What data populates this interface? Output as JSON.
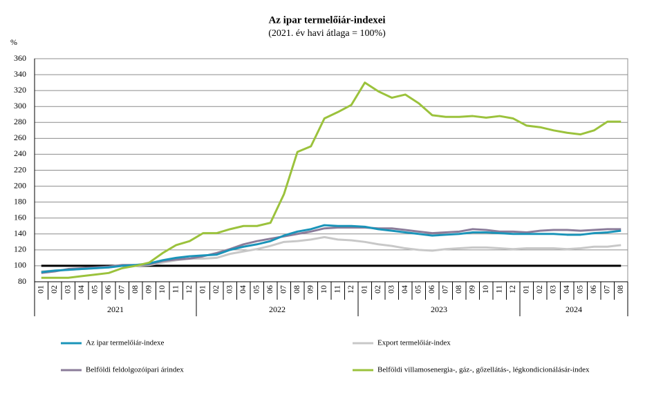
{
  "chart_data": {
    "type": "line",
    "title": "Az ipar termelőiár-indexei",
    "subtitle": "(2021. év havi átlaga = 100%)",
    "y_label": "%",
    "categories": [
      "01",
      "02",
      "03",
      "04",
      "05",
      "06",
      "07",
      "08",
      "09",
      "10",
      "11",
      "12",
      "01",
      "02",
      "03",
      "04",
      "05",
      "06",
      "07",
      "08",
      "09",
      "10",
      "11",
      "12",
      "01",
      "02",
      "03",
      "04",
      "05",
      "06",
      "07",
      "08",
      "09",
      "10",
      "11",
      "12",
      "01",
      "02",
      "03",
      "04",
      "05",
      "06",
      "07",
      "08"
    ],
    "years": [
      "2021",
      "2022",
      "2023",
      "2024"
    ],
    "ylim": [
      80,
      360
    ],
    "yticks": [
      80,
      100,
      120,
      140,
      160,
      180,
      200,
      220,
      240,
      260,
      280,
      300,
      320,
      340,
      360
    ],
    "grid": true,
    "reference_line": 100,
    "series": [
      {
        "name": "Az ipar termelőiár-indexe",
        "color": "#1a94b9",
        "values": [
          92,
          94,
          95,
          96,
          97,
          98,
          100,
          101,
          103,
          107,
          110,
          112,
          113,
          114,
          120,
          124,
          127,
          131,
          138,
          143,
          146,
          151,
          150,
          150,
          149,
          146,
          144,
          142,
          140,
          138,
          139,
          140,
          142,
          142,
          141,
          140,
          140,
          140,
          140,
          139,
          139,
          141,
          142,
          144
        ]
      },
      {
        "name": "Export termelőiár-index",
        "color": "#c8c8c8",
        "values": [
          93,
          94,
          95,
          96,
          97,
          98,
          100,
          100,
          101,
          104,
          107,
          109,
          109,
          110,
          115,
          118,
          121,
          125,
          130,
          131,
          133,
          136,
          133,
          132,
          130,
          127,
          125,
          122,
          120,
          119,
          121,
          122,
          123,
          123,
          122,
          121,
          122,
          122,
          122,
          121,
          122,
          124,
          124,
          126
        ]
      },
      {
        "name": "Belföldi feldolgozóipari árindex",
        "color": "#8b7c9a",
        "values": [
          91,
          93,
          96,
          97,
          98,
          99,
          101,
          101,
          102,
          106,
          108,
          109,
          112,
          116,
          121,
          127,
          131,
          134,
          137,
          140,
          143,
          147,
          148,
          148,
          148,
          147,
          147,
          145,
          143,
          141,
          142,
          143,
          146,
          145,
          143,
          143,
          142,
          144,
          145,
          145,
          144,
          145,
          146,
          146
        ]
      },
      {
        "name": "Belföldi villamosenergia-, gáz-, gőzellátás-, légkondicionálásár-index",
        "color": "#9bc23c",
        "values": [
          85,
          85,
          85,
          87,
          89,
          91,
          97,
          100,
          104,
          116,
          126,
          131,
          141,
          141,
          146,
          150,
          150,
          154,
          190,
          243,
          250,
          285,
          293,
          302,
          330,
          319,
          311,
          315,
          304,
          289,
          287,
          287,
          288,
          286,
          288,
          285,
          276,
          274,
          270,
          267,
          265,
          270,
          281,
          281
        ]
      }
    ]
  }
}
